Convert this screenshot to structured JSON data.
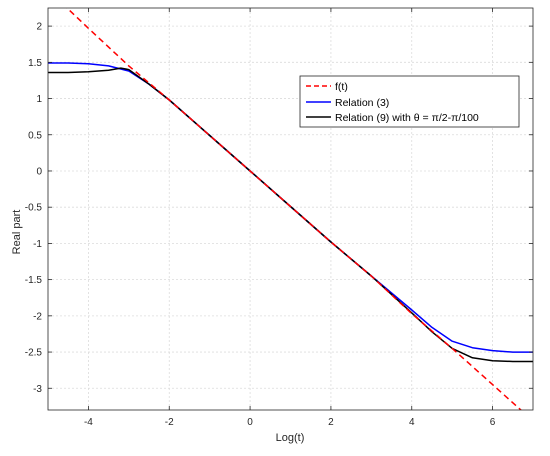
{
  "chart_data": {
    "type": "line",
    "xlabel": "Log(t)",
    "ylabel": "Real part",
    "xlim": [
      -5,
      7
    ],
    "ylim": [
      -3.3,
      2.25
    ],
    "grid": true,
    "legend_position": "top-right",
    "x_ticks": [
      "-4",
      "-2",
      "0",
      "2",
      "4",
      "6"
    ],
    "y_ticks": [
      "-3",
      "-2.5",
      "-2",
      "-1.5",
      "-1",
      "-0.5",
      "0",
      "0.5",
      "1",
      "1.5",
      "2"
    ],
    "series": [
      {
        "name": "f(t)",
        "color": "#ff0000",
        "style": "dashed",
        "x": [
          -5,
          -4,
          -3,
          -2,
          -1,
          0,
          1,
          2,
          3,
          4,
          5,
          6,
          7
        ],
        "y": [
          2.5,
          1.97,
          1.45,
          0.98,
          0.49,
          0,
          -0.49,
          -0.98,
          -1.45,
          -1.97,
          -2.45,
          -2.95,
          -3.45
        ]
      },
      {
        "name": "Relation (3)",
        "color": "#0000ff",
        "style": "solid",
        "x": [
          -5,
          -4.5,
          -4,
          -3.5,
          -3,
          -2.5,
          -2,
          -1,
          0,
          1,
          2,
          3,
          4,
          4.5,
          5,
          5.5,
          6,
          6.5,
          7
        ],
        "y": [
          1.49,
          1.49,
          1.48,
          1.45,
          1.38,
          1.2,
          0.98,
          0.49,
          0,
          -0.49,
          -0.98,
          -1.45,
          -1.92,
          -2.16,
          -2.35,
          -2.44,
          -2.48,
          -2.5,
          -2.5
        ]
      },
      {
        "name": "Relation (9) with θ = π/2-π/100",
        "color": "#000000",
        "style": "solid",
        "x": [
          -5,
          -4.5,
          -4,
          -3.5,
          -3.2,
          -3,
          -2.5,
          -2,
          -1,
          0,
          1,
          2,
          3,
          4,
          4.5,
          5,
          5.5,
          6,
          6.5,
          7
        ],
        "y": [
          1.36,
          1.36,
          1.37,
          1.39,
          1.42,
          1.4,
          1.2,
          0.98,
          0.49,
          0,
          -0.49,
          -0.98,
          -1.45,
          -1.96,
          -2.22,
          -2.45,
          -2.58,
          -2.62,
          -2.63,
          -2.63
        ]
      }
    ]
  }
}
